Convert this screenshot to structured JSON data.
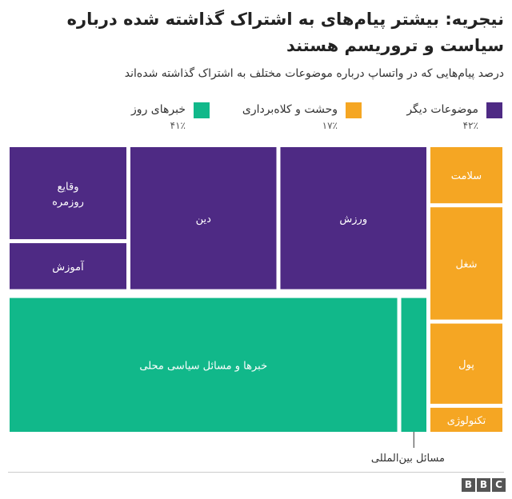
{
  "title": "نیجریه: بیشتر پیام‌های به اشتراک گذاشته شده درباره سیاست و تروریسم هستند",
  "subtitle": "درصد پیام‌هایی که در واتساپ درباره موضوعات مختلف به اشتراک گذاشته شده‌اند",
  "annotation": "مسائل بین‌المللی",
  "brand": [
    "B",
    "B",
    "C"
  ],
  "colors": {
    "purple": "#4e2a84",
    "orange": "#f5a623",
    "green": "#11b88a"
  },
  "legend": [
    {
      "label": "موضوعات دیگر",
      "pct": "۴۲٪",
      "color": "#4e2a84"
    },
    {
      "label": "وحشت و کلاه‌برداری",
      "pct": "۱۷٪",
      "color": "#f5a623"
    },
    {
      "label": "خبرهای روز",
      "pct": "۴۱٪",
      "color": "#11b88a"
    }
  ],
  "chart_data": {
    "type": "treemap",
    "groups": [
      {
        "name": "موضوعات دیگر",
        "percent": 42,
        "color": "#4e2a84",
        "children": [
          {
            "label": "ورزش",
            "value": 15
          },
          {
            "label": "دین",
            "value": 15
          },
          {
            "label": "وقایع روزمره",
            "value": 8
          },
          {
            "label": "آموزش",
            "value": 4
          }
        ]
      },
      {
        "name": "وحشت و کلاه‌برداری",
        "percent": 17,
        "color": "#f5a623",
        "children": [
          {
            "label": "سلامت",
            "value": 3.5
          },
          {
            "label": "شغل",
            "value": 7
          },
          {
            "label": "پول",
            "value": 5
          },
          {
            "label": "تکنولوژی",
            "value": 1.5
          }
        ]
      },
      {
        "name": "خبرهای روز",
        "percent": 41,
        "color": "#11b88a",
        "children": [
          {
            "label": "خبرها و مسائل سیاسی محلی",
            "value": 38.5
          },
          {
            "label": "مسائل بین‌المللی",
            "value": 2.5
          }
        ]
      }
    ]
  }
}
